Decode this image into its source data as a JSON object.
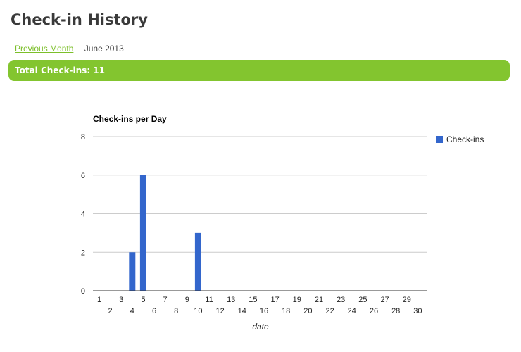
{
  "page": {
    "title": "Check-in History"
  },
  "nav": {
    "prev_label": "Previous Month",
    "current_month": "June 2013"
  },
  "summary": {
    "total_label": "Total Check-ins: 11"
  },
  "colors": {
    "accent": "#83c52f",
    "link": "#7cbf2a",
    "bar": "#3366cc"
  },
  "chart_data": {
    "type": "bar",
    "title": "Check-ins per Day",
    "xlabel": "date",
    "ylabel": "",
    "x": [
      1,
      2,
      3,
      4,
      5,
      6,
      7,
      8,
      9,
      10,
      11,
      12,
      13,
      14,
      15,
      16,
      17,
      18,
      19,
      20,
      21,
      22,
      23,
      24,
      25,
      26,
      27,
      28,
      29,
      30
    ],
    "series": [
      {
        "name": "Check-ins",
        "values": [
          0,
          0,
          0,
          2,
          6,
          0,
          0,
          0,
          0,
          3,
          0,
          0,
          0,
          0,
          0,
          0,
          0,
          0,
          0,
          0,
          0,
          0,
          0,
          0,
          0,
          0,
          0,
          0,
          0,
          0
        ]
      }
    ],
    "ylim": [
      0,
      8
    ],
    "yticks": [
      0,
      2,
      4,
      6,
      8
    ],
    "grid": true,
    "legend_position": "right"
  }
}
